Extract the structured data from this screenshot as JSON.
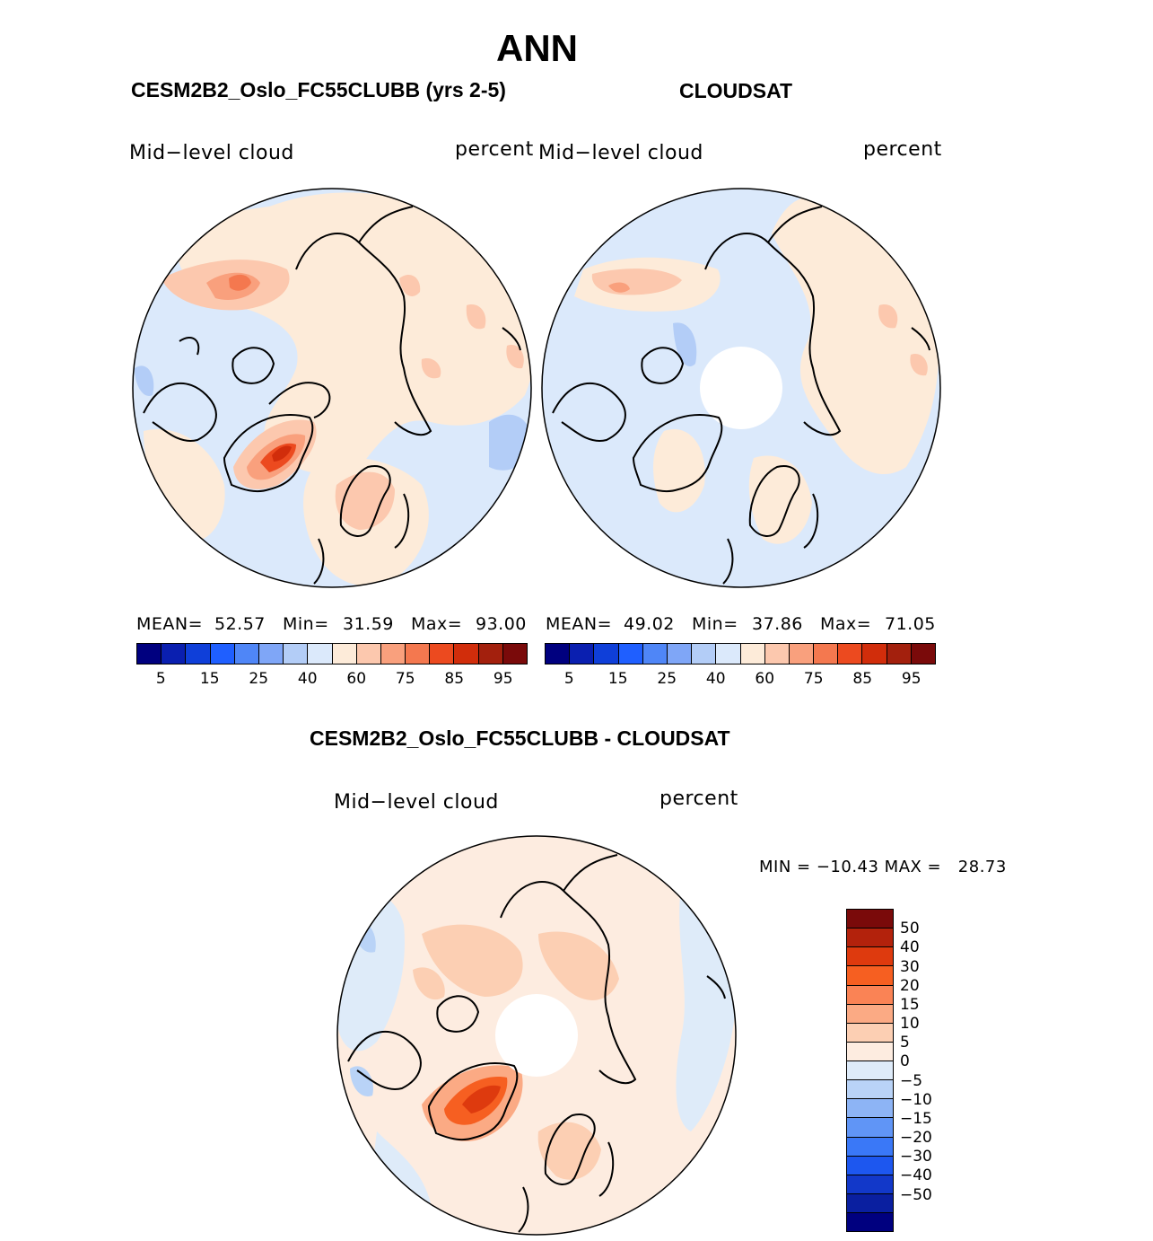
{
  "figure": {
    "title": "ANN",
    "left_panel_title": "CESM2B2_Oslo_FC55CLUBB (yrs 2-5)",
    "right_panel_title": "CLOUDSAT",
    "diff_panel_title": "CESM2B2_Oslo_FC55CLUBB - CLOUDSAT"
  },
  "panels": {
    "left": {
      "variable": "Mid−level  cloud",
      "units": "percent",
      "mean_label": "MEAN=",
      "mean_value": "52.57",
      "min_label": "Min=",
      "min_value": "31.59",
      "max_label": "Max=",
      "max_value": "93.00"
    },
    "right": {
      "variable": "Mid−level  cloud",
      "units": "percent",
      "mean_label": "MEAN=",
      "mean_value": "49.02",
      "min_label": "Min=",
      "min_value": "37.86",
      "max_label": "Max=",
      "max_value": "71.05"
    },
    "diff": {
      "variable": "Mid−level  cloud",
      "units": "percent",
      "minmax_text": "MIN = −10.43 MAX =   28.73"
    }
  },
  "colorbar_abs": {
    "colors": [
      "#00007f",
      "#0a1fb0",
      "#0f3fd9",
      "#1f5fff",
      "#4f86f7",
      "#7fa6f7",
      "#b3cdf7",
      "#dbe9fb",
      "#fdebd9",
      "#fcc8ae",
      "#f9a07d",
      "#f4784f",
      "#ec4a1f",
      "#d12d0b",
      "#a3200d",
      "#7a0a0a"
    ],
    "tick_labels": [
      "5",
      "15",
      "25",
      "40",
      "60",
      "75",
      "85",
      "95"
    ]
  },
  "colorbar_diff": {
    "colors": [
      "#7a0a0a",
      "#b3220c",
      "#de3a0e",
      "#f65f21",
      "#fa8355",
      "#fbaa84",
      "#fccfb3",
      "#fdece0",
      "#deebf9",
      "#b9d3f7",
      "#8db4f5",
      "#6095f6",
      "#3a78f7",
      "#1d57ef",
      "#1238c9",
      "#0a1fa0",
      "#00007f"
    ],
    "tick_labels": [
      "50",
      "40",
      "30",
      "20",
      "15",
      "10",
      "5",
      "0",
      "−5",
      "−10",
      "−15",
      "−20",
      "−30",
      "−40",
      "−50"
    ]
  }
}
